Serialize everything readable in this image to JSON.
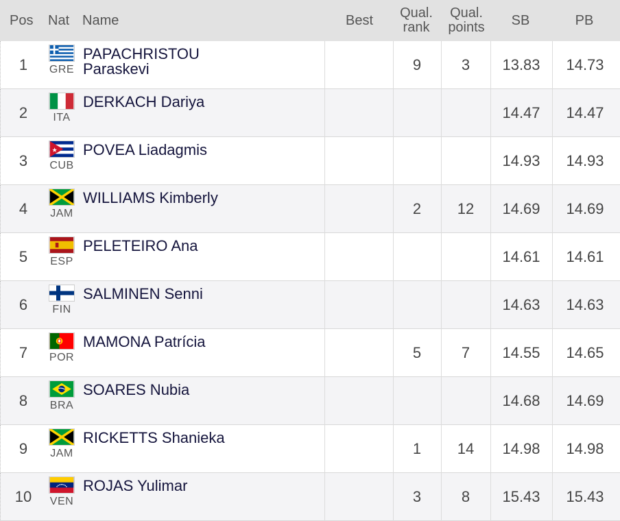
{
  "header": {
    "pos": "Pos",
    "nat": "Nat",
    "name": "Name",
    "best": "Best",
    "qual_rank_line1": "Qual.",
    "qual_rank_line2": "rank",
    "qual_points_line1": "Qual.",
    "qual_points_line2": "points",
    "sb": "SB",
    "pb": "PB"
  },
  "rows": [
    {
      "pos": "1",
      "nat": "GRE",
      "flag": "gre-flag-icon",
      "name_line1": "PAPACHRISTOU",
      "name_line2": "Paraskevi",
      "best": "",
      "qual_rank": "9",
      "qual_points": "3",
      "sb": "13.83",
      "pb": "14.73"
    },
    {
      "pos": "2",
      "nat": "ITA",
      "flag": "ita-flag-icon",
      "name_line1": "DERKACH Dariya",
      "name_line2": "",
      "best": "",
      "qual_rank": "",
      "qual_points": "",
      "sb": "14.47",
      "pb": "14.47"
    },
    {
      "pos": "3",
      "nat": "CUB",
      "flag": "cub-flag-icon",
      "name_line1": "POVEA Liadagmis",
      "name_line2": "",
      "best": "",
      "qual_rank": "",
      "qual_points": "",
      "sb": "14.93",
      "pb": "14.93"
    },
    {
      "pos": "4",
      "nat": "JAM",
      "flag": "jam-flag-icon",
      "name_line1": "WILLIAMS Kimberly",
      "name_line2": "",
      "best": "",
      "qual_rank": "2",
      "qual_points": "12",
      "sb": "14.69",
      "pb": "14.69"
    },
    {
      "pos": "5",
      "nat": "ESP",
      "flag": "esp-flag-icon",
      "name_line1": "PELETEIRO Ana",
      "name_line2": "",
      "best": "",
      "qual_rank": "",
      "qual_points": "",
      "sb": "14.61",
      "pb": "14.61"
    },
    {
      "pos": "6",
      "nat": "FIN",
      "flag": "fin-flag-icon",
      "name_line1": "SALMINEN Senni",
      "name_line2": "",
      "best": "",
      "qual_rank": "",
      "qual_points": "",
      "sb": "14.63",
      "pb": "14.63"
    },
    {
      "pos": "7",
      "nat": "POR",
      "flag": "por-flag-icon",
      "name_line1": "MAMONA Patrícia",
      "name_line2": "",
      "best": "",
      "qual_rank": "5",
      "qual_points": "7",
      "sb": "14.55",
      "pb": "14.65"
    },
    {
      "pos": "8",
      "nat": "BRA",
      "flag": "bra-flag-icon",
      "name_line1": "SOARES Nubia",
      "name_line2": "",
      "best": "",
      "qual_rank": "",
      "qual_points": "",
      "sb": "14.68",
      "pb": "14.69"
    },
    {
      "pos": "9",
      "nat": "JAM",
      "flag": "jam-flag-icon",
      "name_line1": "RICKETTS Shanieka",
      "name_line2": "",
      "best": "",
      "qual_rank": "1",
      "qual_points": "14",
      "sb": "14.98",
      "pb": "14.98"
    },
    {
      "pos": "10",
      "nat": "VEN",
      "flag": "ven-flag-icon",
      "name_line1": "ROJAS Yulimar",
      "name_line2": "",
      "best": "",
      "qual_rank": "3",
      "qual_points": "8",
      "sb": "15.43",
      "pb": "15.43"
    }
  ]
}
